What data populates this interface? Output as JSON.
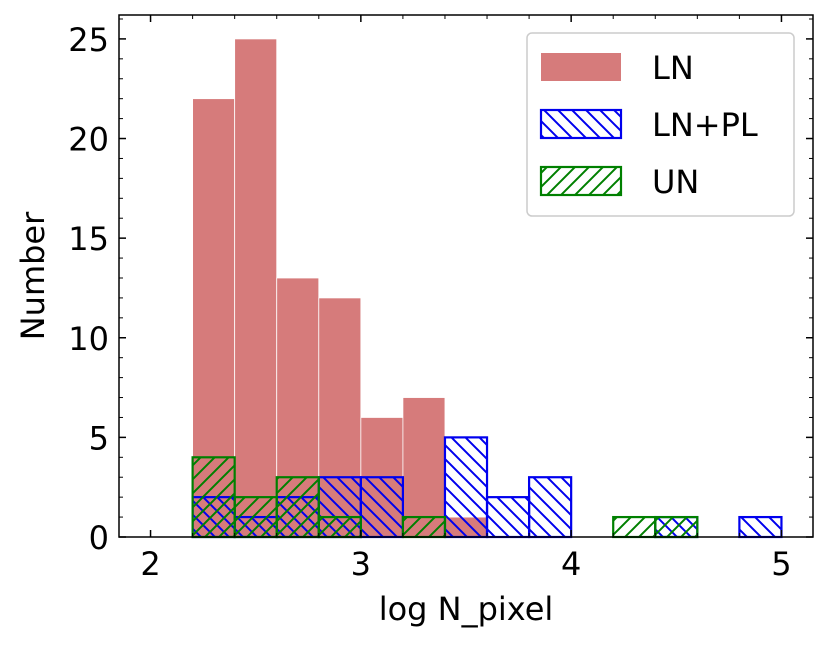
{
  "chart_data": {
    "type": "bar",
    "xlabel": "log N_pixel",
    "ylabel": "Number",
    "xlim": [
      1.85,
      5.15
    ],
    "ylim": [
      0,
      26.2
    ],
    "xticks": [
      2,
      3,
      4,
      5
    ],
    "xtick_labels": [
      "2",
      "3",
      "4",
      "5"
    ],
    "yticks": [
      0,
      5,
      10,
      15,
      20,
      25
    ],
    "ytick_labels": [
      "0",
      "5",
      "10",
      "15",
      "20",
      "25"
    ],
    "legend_position": "top-right",
    "bin_edges": [
      2.2,
      2.4,
      2.6,
      2.8,
      3.0,
      3.2,
      3.4,
      3.6,
      3.8,
      4.0,
      4.2,
      4.4,
      4.6,
      4.8,
      5.0
    ],
    "series": [
      {
        "name": "LN",
        "style": "filled",
        "color": "#d67b7b",
        "counts": [
          22,
          25,
          13,
          12,
          6,
          7,
          1,
          0,
          0,
          0,
          0,
          0,
          0,
          0
        ]
      },
      {
        "name": "LN+PL",
        "style": "hatch-backslash",
        "color": "#0000ee",
        "counts": [
          2,
          1,
          2,
          3,
          3,
          0,
          5,
          2,
          3,
          0,
          0,
          1,
          0,
          1
        ]
      },
      {
        "name": "UN",
        "style": "hatch-slash",
        "color": "#008000",
        "counts": [
          4,
          2,
          3,
          1,
          0,
          1,
          0,
          0,
          0,
          0,
          1,
          1,
          0,
          0
        ]
      }
    ]
  }
}
